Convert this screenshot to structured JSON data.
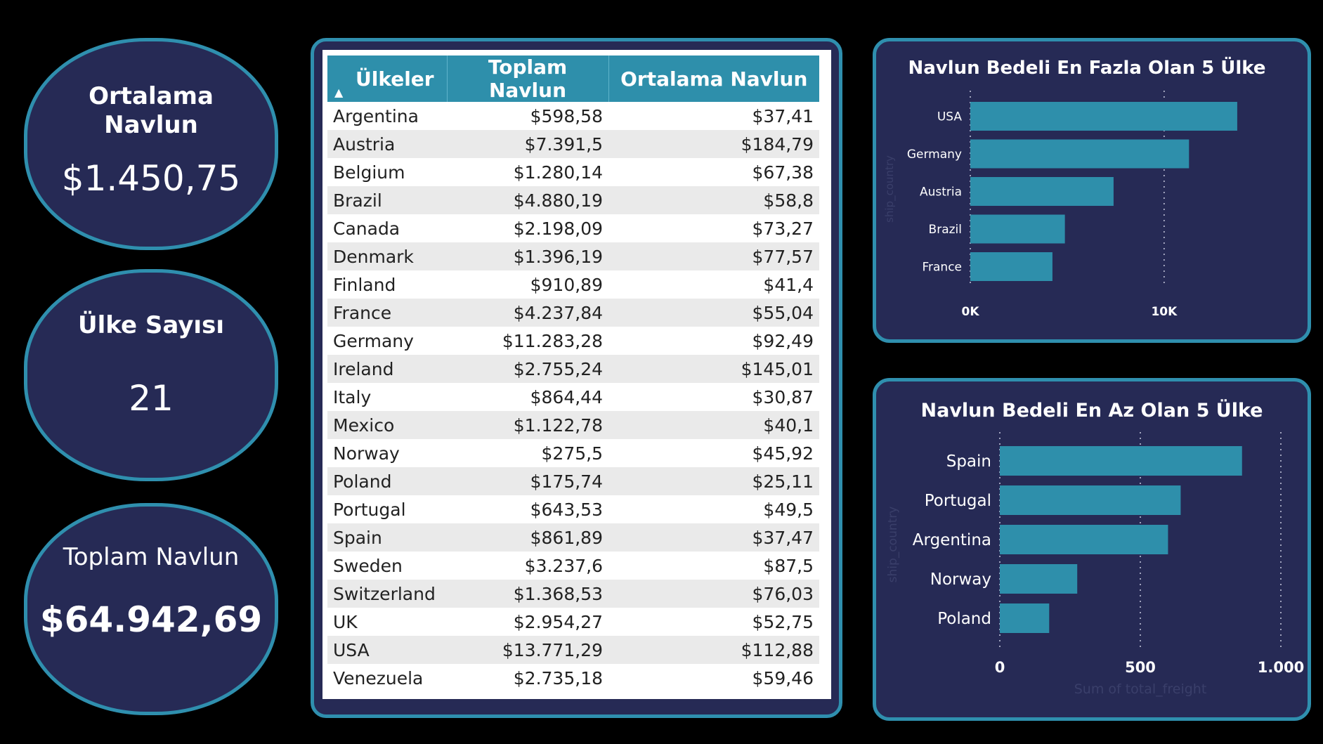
{
  "kpis": {
    "avg_freight": {
      "title": "Ortalama Navlun",
      "value": "$1.450,75"
    },
    "country_count": {
      "title": "Ülke Sayısı",
      "value": "21"
    },
    "total_freight": {
      "title": "Toplam Navlun",
      "value": "$64.942,69"
    }
  },
  "table": {
    "headers": [
      "Ülkeler",
      "Toplam Navlun",
      "Ortalama Navlun"
    ],
    "rows": [
      [
        "Argentina",
        "$598,58",
        "$37,41"
      ],
      [
        "Austria",
        "$7.391,5",
        "$184,79"
      ],
      [
        "Belgium",
        "$1.280,14",
        "$67,38"
      ],
      [
        "Brazil",
        "$4.880,19",
        "$58,8"
      ],
      [
        "Canada",
        "$2.198,09",
        "$73,27"
      ],
      [
        "Denmark",
        "$1.396,19",
        "$77,57"
      ],
      [
        "Finland",
        "$910,89",
        "$41,4"
      ],
      [
        "France",
        "$4.237,84",
        "$55,04"
      ],
      [
        "Germany",
        "$11.283,28",
        "$92,49"
      ],
      [
        "Ireland",
        "$2.755,24",
        "$145,01"
      ],
      [
        "Italy",
        "$864,44",
        "$30,87"
      ],
      [
        "Mexico",
        "$1.122,78",
        "$40,1"
      ],
      [
        "Norway",
        "$275,5",
        "$45,92"
      ],
      [
        "Poland",
        "$175,74",
        "$25,11"
      ],
      [
        "Portugal",
        "$643,53",
        "$49,5"
      ],
      [
        "Spain",
        "$861,89",
        "$37,47"
      ],
      [
        "Sweden",
        "$3.237,6",
        "$87,5"
      ],
      [
        "Switzerland",
        "$1.368,53",
        "$76,03"
      ],
      [
        "UK",
        "$2.954,27",
        "$52,75"
      ],
      [
        "USA",
        "$13.771,29",
        "$112,88"
      ],
      [
        "Venezuela",
        "$2.735,18",
        "$59,46"
      ]
    ]
  },
  "colors": {
    "bar": "#2e8fab",
    "panel": "#262a55",
    "border": "#2f8fae"
  },
  "chart_data": [
    {
      "type": "bar",
      "orientation": "horizontal",
      "title": "Navlun Bedeli En Fazla Olan 5 Ülke",
      "ylabel": "ship_country",
      "categories": [
        "USA",
        "Germany",
        "Austria",
        "Brazil",
        "France"
      ],
      "values": [
        13771.29,
        11283.28,
        7391.5,
        4880.19,
        4237.84
      ],
      "xlim": [
        0,
        17000
      ],
      "xticks": [
        {
          "value": 0,
          "label": "0K"
        },
        {
          "value": 10000,
          "label": "10K"
        }
      ],
      "grid": true
    },
    {
      "type": "bar",
      "orientation": "horizontal",
      "title": "Navlun Bedeli En Az Olan 5 Ülke",
      "ylabel": "ship_country",
      "xlabel": "Sum of total_freight",
      "categories": [
        "Spain",
        "Portugal",
        "Argentina",
        "Norway",
        "Poland"
      ],
      "values": [
        861.89,
        643.53,
        598.58,
        275.5,
        175.74
      ],
      "xlim": [
        0,
        1000
      ],
      "xticks": [
        {
          "value": 0,
          "label": "0"
        },
        {
          "value": 500,
          "label": "500"
        },
        {
          "value": 1000,
          "label": "1.000"
        }
      ],
      "grid": true
    }
  ]
}
